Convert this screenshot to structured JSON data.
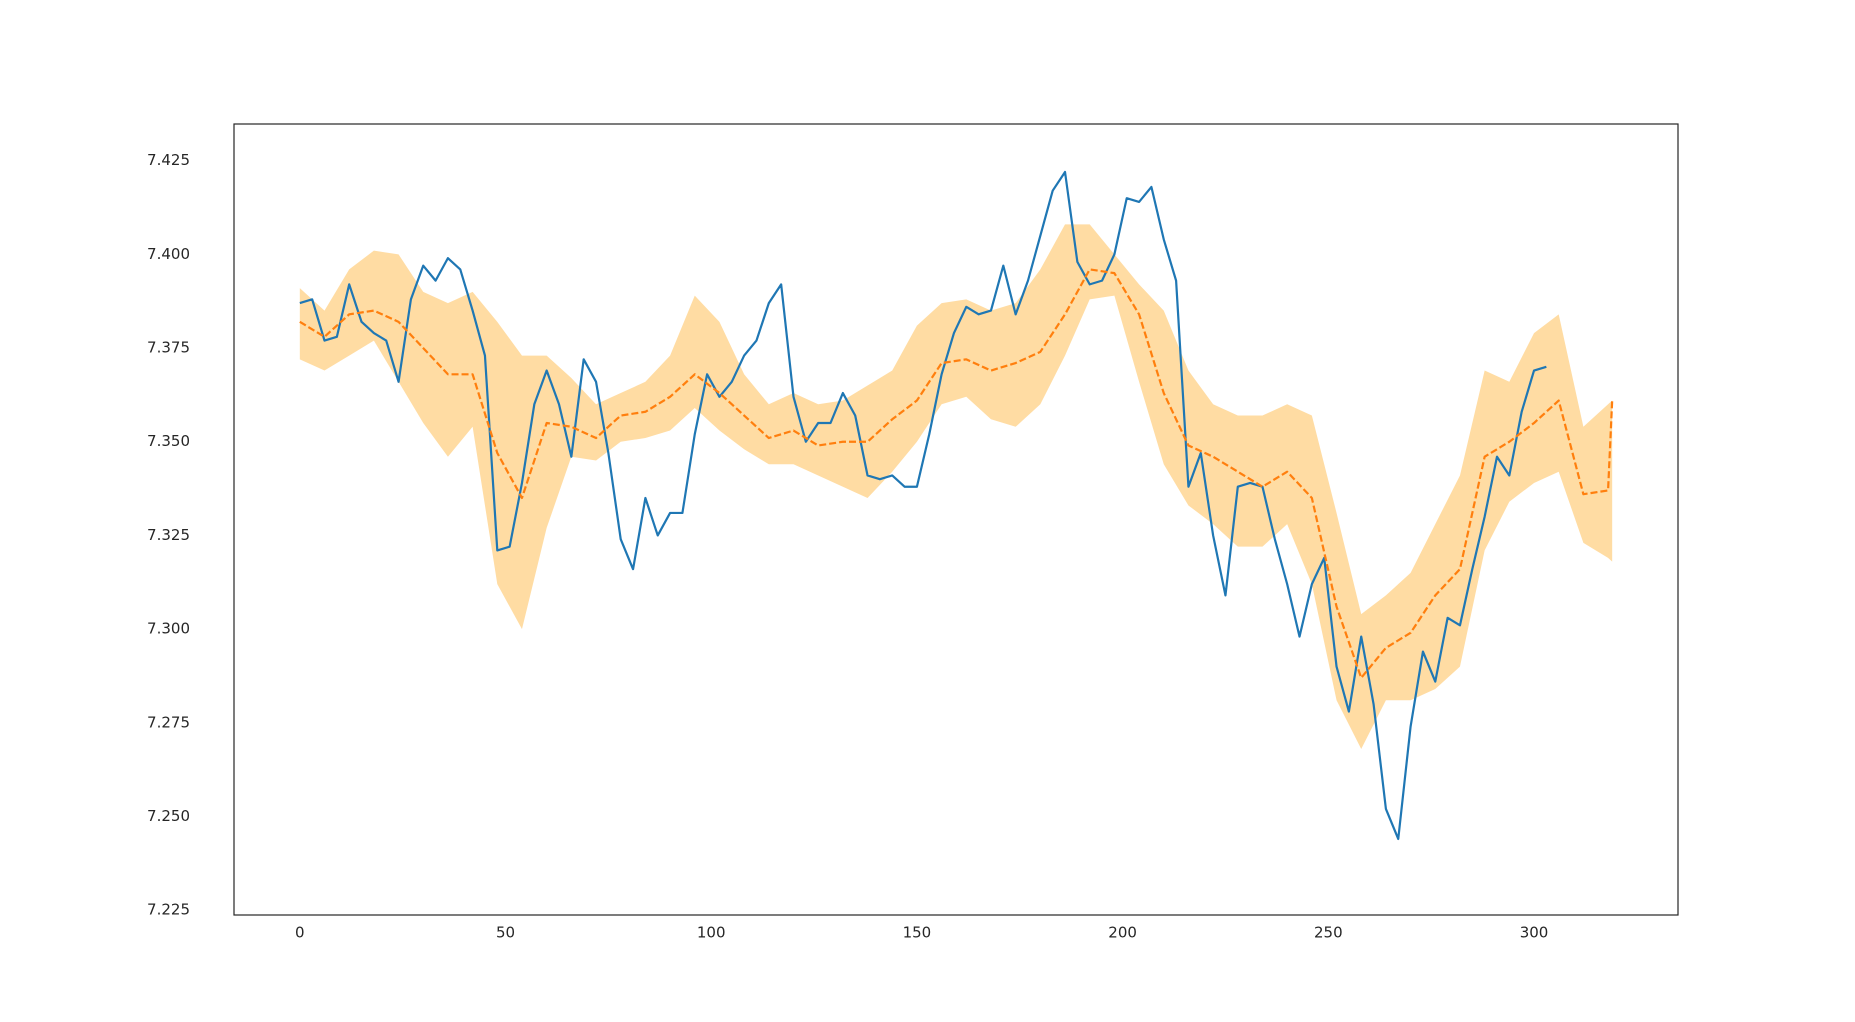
{
  "chart_data": {
    "type": "line",
    "xlim": [
      -16,
      335
    ],
    "xticks": [
      0,
      50,
      100,
      150,
      200,
      250,
      300
    ],
    "ylim": [
      7.2237,
      7.4348
    ],
    "yticks": [
      7.225,
      {
        "value": 7.25,
        "label": "7.250"
      },
      7.275,
      {
        "value": 7.3,
        "label": "7.300"
      },
      7.325,
      {
        "value": 7.35,
        "label": "7.350"
      },
      7.375,
      {
        "value": 7.4,
        "label": "7.400"
      },
      7.425
    ],
    "grid": false,
    "band": {
      "color": "#ffdca3",
      "x": [
        0,
        6,
        12,
        18,
        24,
        30,
        36,
        42,
        48,
        54,
        60,
        66,
        72,
        78,
        84,
        90,
        96,
        102,
        108,
        114,
        120,
        126,
        132,
        138,
        144,
        150,
        156,
        162,
        168,
        174,
        180,
        186,
        192,
        198,
        204,
        210,
        216,
        222,
        228,
        234,
        240,
        246,
        252,
        258,
        264,
        270,
        276,
        282,
        288,
        294,
        300,
        306,
        312,
        318,
        319
      ],
      "lower": [
        7.372,
        7.369,
        7.373,
        7.377,
        7.366,
        7.355,
        7.346,
        7.354,
        7.312,
        7.3,
        7.327,
        7.346,
        7.345,
        7.35,
        7.351,
        7.353,
        7.359,
        7.353,
        7.348,
        7.344,
        7.344,
        7.341,
        7.338,
        7.335,
        7.342,
        7.35,
        7.36,
        7.362,
        7.356,
        7.354,
        7.36,
        7.373,
        7.388,
        7.389,
        7.366,
        7.344,
        7.333,
        7.328,
        7.322,
        7.322,
        7.328,
        7.312,
        7.281,
        7.268,
        7.281,
        7.281,
        7.284,
        7.29,
        7.321,
        7.334,
        7.339,
        7.342,
        7.323,
        7.319,
        7.318
      ],
      "upper": [
        7.391,
        7.385,
        7.396,
        7.401,
        7.4,
        7.39,
        7.387,
        7.39,
        7.382,
        7.373,
        7.373,
        7.367,
        7.36,
        7.363,
        7.366,
        7.373,
        7.389,
        7.382,
        7.368,
        7.36,
        7.363,
        7.36,
        7.361,
        7.365,
        7.369,
        7.381,
        7.387,
        7.388,
        7.385,
        7.387,
        7.396,
        7.408,
        7.408,
        7.4,
        7.392,
        7.385,
        7.369,
        7.36,
        7.357,
        7.357,
        7.36,
        7.357,
        7.331,
        7.304,
        7.309,
        7.315,
        7.328,
        7.341,
        7.369,
        7.366,
        7.379,
        7.384,
        7.354,
        7.36,
        7.361
      ]
    },
    "series": [
      {
        "color": "#1f77b4",
        "style": "solid",
        "x": [
          0,
          3,
          6,
          9,
          12,
          15,
          18,
          21,
          24,
          27,
          30,
          33,
          36,
          39,
          42,
          45,
          48,
          51,
          54,
          57,
          60,
          63,
          66,
          69,
          72,
          75,
          78,
          81,
          84,
          87,
          90,
          93,
          96,
          99,
          102,
          105,
          108,
          111,
          114,
          117,
          120,
          123,
          126,
          129,
          132,
          135,
          138,
          141,
          144,
          147,
          150,
          153,
          156,
          159,
          162,
          165,
          168,
          171,
          174,
          177,
          180,
          183,
          186,
          189,
          192,
          195,
          198,
          201,
          204,
          207,
          210,
          213,
          216,
          219,
          222,
          225,
          228,
          231,
          234,
          237,
          240,
          243,
          246,
          249,
          252,
          255,
          258,
          261,
          264,
          267,
          270,
          273,
          276,
          279,
          282,
          285,
          288,
          291,
          294,
          297,
          300,
          303
        ],
        "values": [
          7.387,
          7.388,
          7.377,
          7.378,
          7.392,
          7.382,
          7.379,
          7.377,
          7.366,
          7.388,
          7.397,
          7.393,
          7.399,
          7.396,
          7.385,
          7.373,
          7.321,
          7.322,
          7.339,
          7.36,
          7.369,
          7.36,
          7.346,
          7.372,
          7.366,
          7.347,
          7.324,
          7.316,
          7.335,
          7.325,
          7.331,
          7.331,
          7.352,
          7.368,
          7.362,
          7.366,
          7.373,
          7.377,
          7.387,
          7.392,
          7.362,
          7.35,
          7.355,
          7.355,
          7.363,
          7.357,
          7.341,
          7.34,
          7.341,
          7.338,
          7.338,
          7.352,
          7.368,
          7.379,
          7.386,
          7.384,
          7.385,
          7.397,
          7.384,
          7.393,
          7.405,
          7.417,
          7.422,
          7.398,
          7.392,
          7.393,
          7.4,
          7.415,
          7.414,
          7.418,
          7.404,
          7.393,
          7.338,
          7.347,
          7.325,
          7.309,
          7.338,
          7.339,
          7.338,
          7.324,
          7.312,
          7.298,
          7.312,
          7.319,
          7.29,
          7.278,
          7.298,
          7.28,
          7.252,
          7.244,
          7.274,
          7.294,
          7.286,
          7.303,
          7.301,
          7.316,
          7.33,
          7.346,
          7.341,
          7.358,
          7.369,
          7.37
        ]
      },
      {
        "color": "#ff7f0e",
        "style": "dashed",
        "x": [
          0,
          6,
          12,
          18,
          24,
          30,
          36,
          42,
          48,
          54,
          60,
          66,
          72,
          78,
          84,
          90,
          96,
          102,
          108,
          114,
          120,
          126,
          132,
          138,
          144,
          150,
          156,
          162,
          168,
          174,
          180,
          186,
          192,
          198,
          204,
          210,
          216,
          222,
          228,
          234,
          240,
          246,
          252,
          258,
          264,
          270,
          276,
          282,
          288,
          294,
          300,
          306,
          312,
          318,
          319
        ],
        "values": [
          7.382,
          7.378,
          7.384,
          7.385,
          7.382,
          7.375,
          7.368,
          7.368,
          7.347,
          7.335,
          7.355,
          7.354,
          7.351,
          7.357,
          7.358,
          7.362,
          7.368,
          7.363,
          7.357,
          7.351,
          7.353,
          7.349,
          7.35,
          7.35,
          7.356,
          7.361,
          7.371,
          7.372,
          7.369,
          7.371,
          7.374,
          7.384,
          7.396,
          7.395,
          7.384,
          7.363,
          7.349,
          7.346,
          7.342,
          7.338,
          7.342,
          7.335,
          7.306,
          7.287,
          7.295,
          7.299,
          7.309,
          7.316,
          7.346,
          7.35,
          7.355,
          7.361,
          7.336,
          7.337,
          7.361
        ]
      }
    ]
  }
}
